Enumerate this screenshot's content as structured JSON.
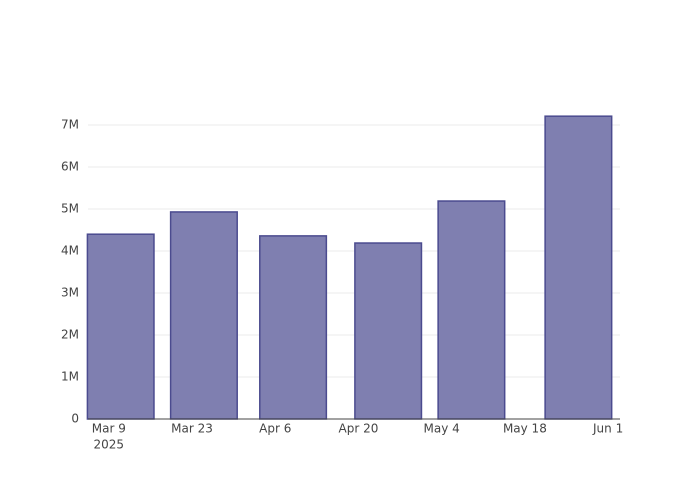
{
  "chart_data": {
    "type": "bar",
    "x": [
      "2025-03-11",
      "2025-03-25",
      "2025-04-09",
      "2025-04-25",
      "2025-05-09",
      "2025-05-27"
    ],
    "values": [
      4400000,
      4930000,
      4360000,
      4190000,
      5190000,
      7210000
    ],
    "color": "#7f7fb0",
    "edge_color": "#4b4b8f",
    "xlim": [
      "2025-03-05 12:00",
      "2025-06-03"
    ],
    "xticks": [
      {
        "value": "2025-03-09",
        "label": "Mar 9"
      },
      {
        "value": "2025-03-23",
        "label": "Mar 23"
      },
      {
        "value": "2025-04-06",
        "label": "Apr 6"
      },
      {
        "value": "2025-04-20",
        "label": "Apr 20"
      },
      {
        "value": "2025-05-04",
        "label": "May 4"
      },
      {
        "value": "2025-05-18",
        "label": "May 18"
      },
      {
        "value": "2025-06-01",
        "label": "Jun 1"
      }
    ],
    "x_year_label": "2025",
    "ylim": [
      0,
      7590000
    ],
    "yticks": [
      0,
      {
        "value": 1000000,
        "label": "1M"
      },
      {
        "value": 2000000,
        "label": "2M"
      },
      {
        "value": 3000000,
        "label": "3M"
      },
      {
        "value": 4000000,
        "label": "4M"
      },
      {
        "value": 5000000,
        "label": "5M"
      },
      {
        "value": 6000000,
        "label": "6M"
      },
      {
        "value": 7000000,
        "label": "7M"
      }
    ],
    "grid": true
  }
}
